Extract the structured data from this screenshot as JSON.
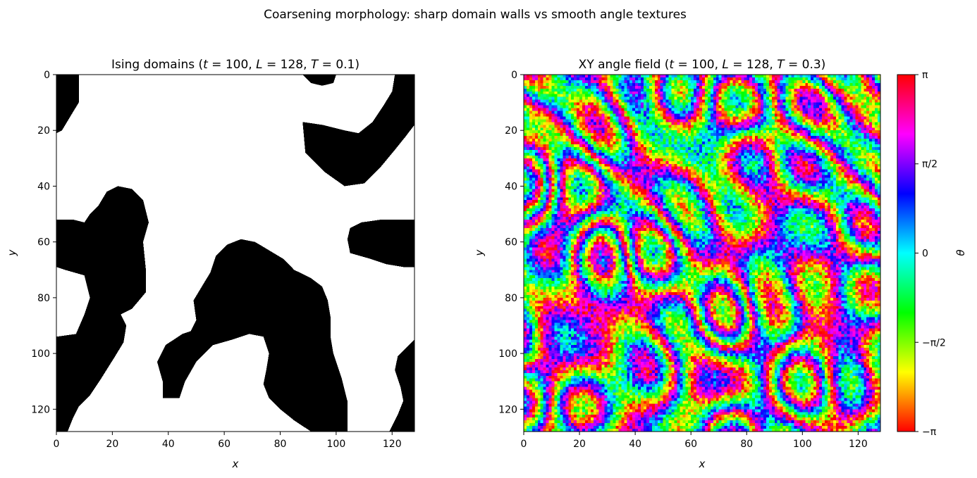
{
  "figure": {
    "suptitle": "Coarsening morphology: sharp domain walls vs smooth angle textures"
  },
  "chart_data": [
    {
      "type": "heatmap",
      "title": "Ising domains (t = 100, L = 128, T = 0.1)",
      "title_parts": {
        "prefix": "Ising domains (",
        "t": "t",
        "t_val": " = 100, ",
        "L": "L",
        "L_val": " = 128, ",
        "T": "T",
        "T_val": " = 0.1)"
      },
      "xlabel": "x",
      "ylabel": "y",
      "xlim": [
        0,
        128
      ],
      "ylim": [
        128,
        0
      ],
      "xticks": [
        0,
        20,
        40,
        60,
        80,
        100,
        120
      ],
      "yticks": [
        0,
        20,
        40,
        60,
        80,
        100,
        120
      ],
      "colors": {
        "spin_down": "#000000",
        "spin_up": "#ffffff"
      },
      "lattice_size": 128,
      "black_domains_description": "black (spin -1) domains on white (spin +1) background",
      "black_domains": [
        {
          "shape": "top-left edge strip",
          "pts": [
            [
              0,
              0
            ],
            [
              8,
              0
            ],
            [
              8,
              10
            ],
            [
              5,
              15
            ],
            [
              2,
              20
            ],
            [
              0,
              21
            ]
          ]
        },
        {
          "shape": "top edge notch",
          "pts": [
            [
              88,
              0
            ],
            [
              100,
              0
            ],
            [
              99,
              3
            ],
            [
              95,
              4
            ],
            [
              91,
              3
            ]
          ]
        },
        {
          "shape": "upper-right arm",
          "pts": [
            [
              128,
              0
            ],
            [
              121,
              0
            ],
            [
              120,
              6
            ],
            [
              117,
              11
            ],
            [
              113,
              17
            ],
            [
              108,
              21
            ],
            [
              103,
              20
            ],
            [
              95,
              18
            ],
            [
              88,
              17
            ],
            [
              89,
              28
            ],
            [
              96,
              35
            ],
            [
              103,
              40
            ],
            [
              110,
              39
            ],
            [
              116,
              33
            ],
            [
              121,
              27
            ],
            [
              125,
              22
            ],
            [
              128,
              18
            ]
          ]
        },
        {
          "shape": "left blob",
          "pts": [
            [
              0,
              52
            ],
            [
              6,
              52
            ],
            [
              10,
              53
            ],
            [
              12,
              50
            ],
            [
              15,
              47
            ],
            [
              18,
              42
            ],
            [
              22,
              40
            ],
            [
              27,
              41
            ],
            [
              31,
              45
            ],
            [
              33,
              53
            ],
            [
              31,
              60
            ],
            [
              32,
              70
            ],
            [
              32,
              78
            ],
            [
              27,
              84
            ],
            [
              23,
              86
            ],
            [
              25,
              90
            ],
            [
              24,
              96
            ],
            [
              21,
              101
            ],
            [
              16,
              109
            ],
            [
              12,
              115
            ],
            [
              8,
              119
            ],
            [
              6,
              123
            ],
            [
              4,
              128
            ],
            [
              0,
              128
            ],
            [
              0,
              94
            ],
            [
              7,
              93
            ],
            [
              10,
              86
            ],
            [
              12,
              80
            ],
            [
              10,
              72
            ],
            [
              3,
              70
            ],
            [
              0,
              69
            ]
          ]
        },
        {
          "shape": "central U-band",
          "pts": [
            [
              38,
              110
            ],
            [
              36,
              103
            ],
            [
              39,
              97
            ],
            [
              45,
              93
            ],
            [
              48,
              92
            ],
            [
              50,
              88
            ],
            [
              49,
              81
            ],
            [
              52,
              76
            ],
            [
              55,
              71
            ],
            [
              57,
              65
            ],
            [
              61,
              61
            ],
            [
              66,
              59
            ],
            [
              71,
              60
            ],
            [
              76,
              63
            ],
            [
              81,
              66
            ],
            [
              85,
              70
            ],
            [
              91,
              73
            ],
            [
              95,
              76
            ],
            [
              97,
              81
            ],
            [
              98,
              87
            ],
            [
              98,
              94
            ],
            [
              99,
              100
            ],
            [
              102,
              109
            ],
            [
              104,
              117
            ],
            [
              104,
              128
            ],
            [
              91,
              128
            ],
            [
              85,
              124
            ],
            [
              80,
              120
            ],
            [
              76,
              116
            ],
            [
              74,
              111
            ],
            [
              75,
              106
            ],
            [
              76,
              100
            ],
            [
              74,
              94
            ],
            [
              69,
              93
            ],
            [
              63,
              95
            ],
            [
              56,
              97
            ],
            [
              50,
              103
            ],
            [
              46,
              110
            ],
            [
              44,
              116
            ],
            [
              38,
              116
            ]
          ]
        },
        {
          "shape": "right lobe",
          "pts": [
            [
              128,
              52
            ],
            [
              116,
              52
            ],
            [
              109,
              53
            ],
            [
              105,
              55
            ],
            [
              104,
              59
            ],
            [
              105,
              64
            ],
            [
              112,
              66
            ],
            [
              118,
              68
            ],
            [
              124,
              69
            ],
            [
              128,
              69
            ]
          ]
        },
        {
          "shape": "bottom-right corner",
          "pts": [
            [
              128,
              95
            ],
            [
              126,
              97
            ],
            [
              122,
              101
            ],
            [
              121,
              106
            ],
            [
              123,
              112
            ],
            [
              124,
              117
            ],
            [
              122,
              122
            ],
            [
              120,
              126
            ],
            [
              119,
              128
            ],
            [
              128,
              128
            ]
          ]
        }
      ]
    },
    {
      "type": "heatmap",
      "title": "XY angle field (t = 100, L = 128, T = 0.3)",
      "title_parts": {
        "prefix": "XY angle field (",
        "t": "t",
        "t_val": " = 100, ",
        "L": "L",
        "L_val": " = 128, ",
        "T": "T",
        "T_val": " = 0.3)"
      },
      "xlabel": "x",
      "ylabel": "y",
      "xlim": [
        0,
        128
      ],
      "ylim": [
        128,
        0
      ],
      "xticks": [
        0,
        20,
        40,
        60,
        80,
        100,
        120
      ],
      "yticks": [
        0,
        20,
        40,
        60,
        80,
        100,
        120
      ],
      "lattice_size": 128,
      "colormap": "hsv",
      "value_range": [
        -3.14159,
        3.14159
      ],
      "field_description": "random smooth angle texture with noise, hue = theta",
      "colorbar": {
        "label": "θ",
        "ticks": [
          {
            "value": -3.14159,
            "label": "−π"
          },
          {
            "value": -1.5708,
            "label": "−π/2"
          },
          {
            "value": 0,
            "label": "0"
          },
          {
            "value": 1.5708,
            "label": "π/2"
          },
          {
            "value": 3.14159,
            "label": "π"
          }
        ]
      }
    }
  ]
}
